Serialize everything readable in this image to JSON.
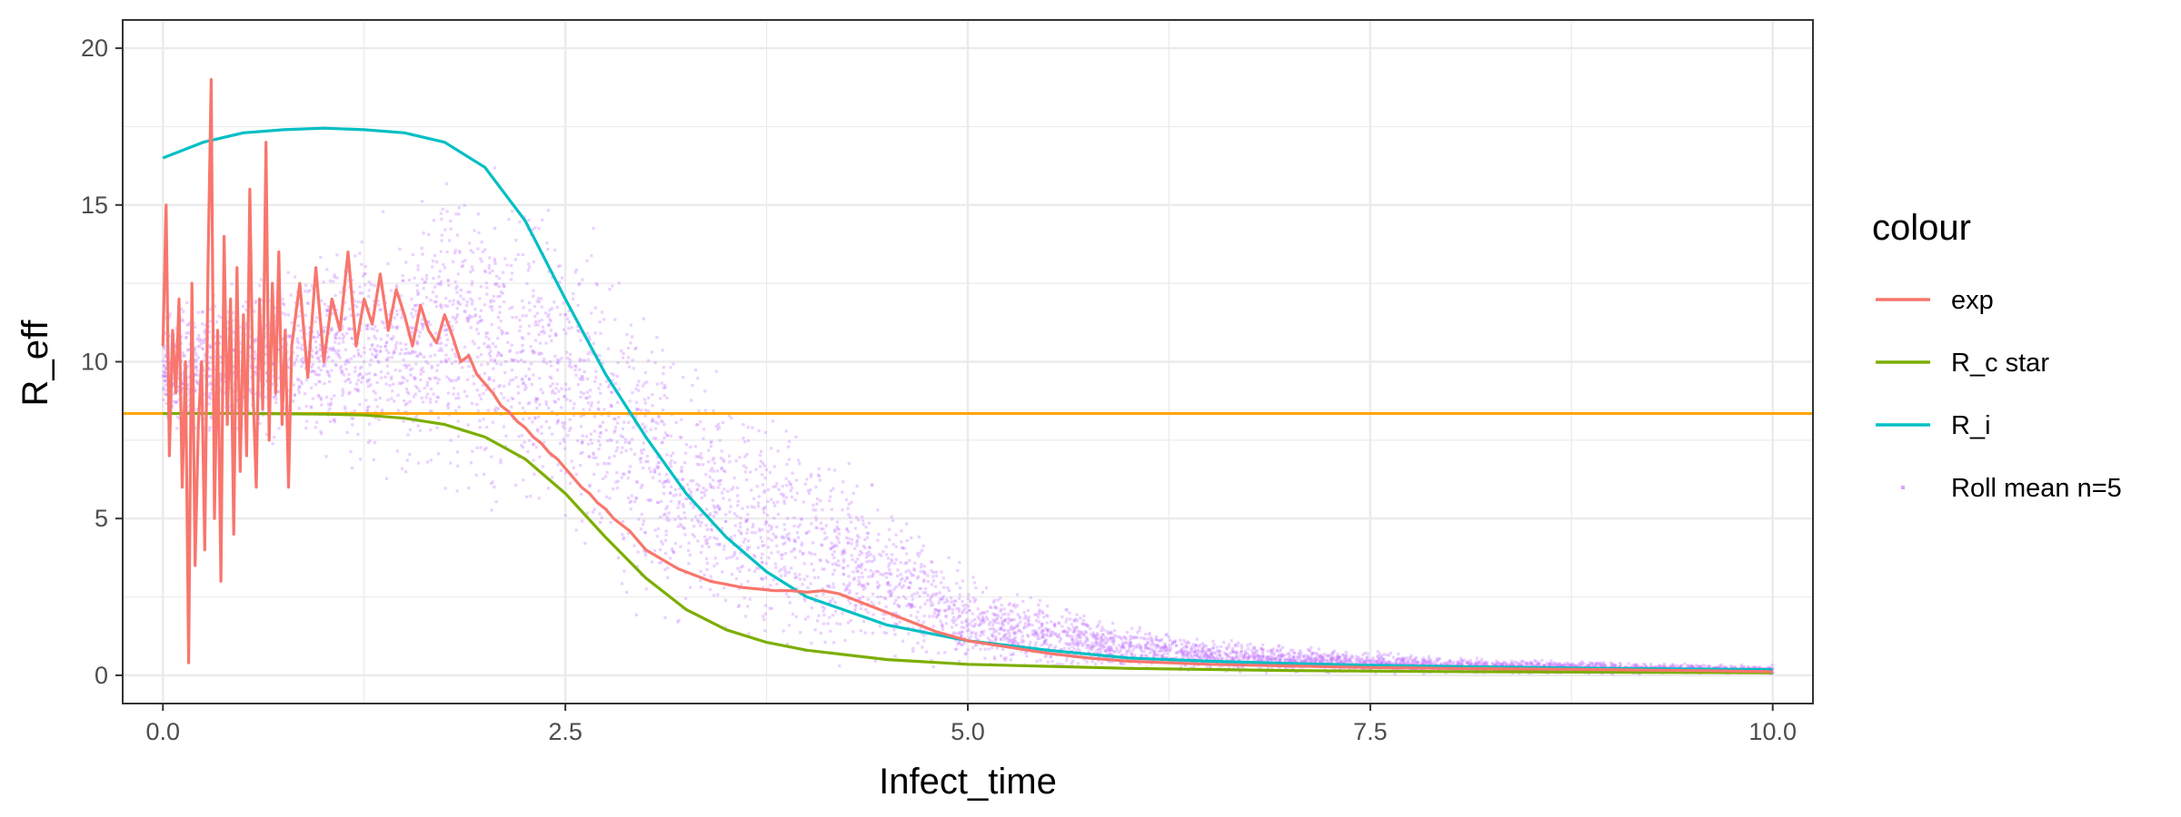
{
  "chart_data": {
    "type": "line",
    "xlabel": "Infect_time",
    "ylabel": "R_eff",
    "xlim": [
      -0.25,
      10.25
    ],
    "ylim": [
      -0.9,
      20.9
    ],
    "x_ticks": [
      0.0,
      2.5,
      5.0,
      7.5,
      10.0
    ],
    "x_tick_labels": [
      "0.0",
      "2.5",
      "5.0",
      "7.5",
      "10.0"
    ],
    "y_ticks": [
      0,
      5,
      10,
      15,
      20
    ],
    "y_tick_labels": [
      "0",
      "5",
      "10",
      "15",
      "20"
    ],
    "grid": true,
    "legend": {
      "title": "colour",
      "position": "right",
      "entries": [
        {
          "label": "exp",
          "color": "#F8766D",
          "kind": "line"
        },
        {
          "label": "R_c star",
          "color": "#7CAE00",
          "kind": "line"
        },
        {
          "label": "R_i",
          "color": "#00BFC4",
          "kind": "line"
        },
        {
          "label": "Roll mean n=5",
          "color": "#C77CFF",
          "kind": "point"
        }
      ]
    },
    "hline": {
      "y": 8.35,
      "color": "#FFA500"
    },
    "series": [
      {
        "name": "R_i",
        "color": "#00BFC4",
        "x": [
          0.0,
          0.25,
          0.5,
          0.75,
          1.0,
          1.25,
          1.5,
          1.75,
          2.0,
          2.25,
          2.5,
          2.75,
          3.0,
          3.25,
          3.5,
          3.75,
          4.0,
          4.5,
          5.0,
          5.5,
          6.0,
          6.5,
          7.0,
          7.5,
          8.0,
          9.0,
          10.0
        ],
        "y": [
          16.5,
          17.0,
          17.3,
          17.4,
          17.45,
          17.4,
          17.3,
          17.0,
          16.2,
          14.5,
          12.0,
          9.6,
          7.6,
          5.8,
          4.4,
          3.3,
          2.5,
          1.6,
          1.1,
          0.8,
          0.55,
          0.45,
          0.38,
          0.32,
          0.28,
          0.22,
          0.18
        ]
      },
      {
        "name": "R_c star",
        "color": "#7CAE00",
        "x": [
          0.0,
          0.5,
          1.0,
          1.25,
          1.5,
          1.75,
          2.0,
          2.25,
          2.5,
          2.75,
          3.0,
          3.25,
          3.5,
          3.75,
          4.0,
          4.5,
          5.0,
          6.0,
          7.0,
          8.0,
          9.0,
          10.0
        ],
        "y": [
          8.35,
          8.35,
          8.33,
          8.3,
          8.2,
          8.0,
          7.6,
          6.9,
          5.8,
          4.4,
          3.1,
          2.1,
          1.45,
          1.05,
          0.8,
          0.5,
          0.35,
          0.22,
          0.15,
          0.12,
          0.1,
          0.08
        ]
      },
      {
        "name": "exp",
        "color": "#F8766D",
        "x": [
          0.0,
          0.02,
          0.04,
          0.06,
          0.08,
          0.1,
          0.12,
          0.14,
          0.16,
          0.18,
          0.2,
          0.22,
          0.24,
          0.26,
          0.28,
          0.3,
          0.32,
          0.34,
          0.36,
          0.38,
          0.4,
          0.42,
          0.44,
          0.46,
          0.48,
          0.5,
          0.52,
          0.54,
          0.56,
          0.58,
          0.6,
          0.62,
          0.64,
          0.66,
          0.68,
          0.7,
          0.72,
          0.74,
          0.76,
          0.78,
          0.8,
          0.85,
          0.9,
          0.95,
          1.0,
          1.05,
          1.1,
          1.15,
          1.2,
          1.25,
          1.3,
          1.35,
          1.4,
          1.45,
          1.5,
          1.55,
          1.6,
          1.65,
          1.7,
          1.75,
          1.8,
          1.85,
          1.9,
          1.95,
          2.0,
          2.05,
          2.1,
          2.15,
          2.2,
          2.25,
          2.3,
          2.35,
          2.4,
          2.45,
          2.5,
          2.55,
          2.6,
          2.65,
          2.7,
          2.75,
          2.8,
          2.85,
          2.9,
          2.95,
          3.0,
          3.1,
          3.2,
          3.3,
          3.4,
          3.5,
          3.6,
          3.7,
          3.8,
          3.9,
          4.0,
          4.1,
          4.2,
          4.3,
          4.4,
          4.5,
          4.6,
          4.7,
          4.8,
          4.9,
          5.0,
          5.25,
          5.5,
          5.75,
          6.0,
          6.5,
          7.0,
          7.5,
          8.0,
          8.5,
          9.0,
          9.5,
          10.0
        ],
        "y": [
          10.5,
          15.0,
          7.0,
          11.0,
          9.0,
          12.0,
          6.0,
          10.0,
          0.4,
          12.5,
          3.5,
          8.0,
          10.0,
          4.0,
          13.0,
          19.0,
          5.0,
          11.0,
          3.0,
          14.0,
          8.0,
          12.0,
          4.5,
          13.0,
          6.5,
          11.5,
          7.0,
          15.5,
          9.0,
          6.0,
          12.0,
          8.5,
          17.0,
          7.5,
          12.5,
          9.0,
          13.5,
          8.0,
          11.0,
          6.0,
          10.5,
          12.5,
          9.5,
          13.0,
          10.0,
          12.0,
          11.0,
          13.5,
          10.5,
          12.0,
          11.2,
          12.8,
          11.0,
          12.3,
          11.5,
          10.5,
          11.8,
          11.0,
          10.6,
          11.5,
          10.8,
          10.0,
          10.2,
          9.6,
          9.3,
          9.0,
          8.6,
          8.4,
          8.1,
          7.9,
          7.6,
          7.4,
          7.1,
          6.9,
          6.6,
          6.3,
          6.0,
          5.8,
          5.5,
          5.3,
          5.0,
          4.8,
          4.6,
          4.3,
          4.0,
          3.7,
          3.4,
          3.2,
          3.0,
          2.9,
          2.8,
          2.75,
          2.7,
          2.7,
          2.65,
          2.7,
          2.6,
          2.4,
          2.2,
          2.0,
          1.8,
          1.6,
          1.4,
          1.25,
          1.1,
          0.9,
          0.7,
          0.55,
          0.45,
          0.35,
          0.3,
          0.25,
          0.22,
          0.2,
          0.18,
          0.15,
          0.12
        ]
      }
    ],
    "scatter_cloud": {
      "name": "Roll mean n=5",
      "color": "#C77CFF",
      "x_range": [
        0.0,
        10.0
      ],
      "x": [
        0.0,
        0.5,
        1.0,
        1.5,
        1.75,
        2.0,
        2.25,
        2.5,
        2.75,
        3.0,
        3.25,
        3.5,
        3.75,
        4.0,
        4.25,
        4.5,
        4.75,
        5.0,
        5.5,
        6.0,
        6.5,
        7.0,
        7.5,
        8.0,
        9.0,
        10.0
      ],
      "y_low": [
        7.5,
        7.0,
        6.5,
        5.5,
        5.0,
        4.4,
        3.6,
        2.8,
        2.0,
        1.3,
        0.8,
        0.5,
        0.3,
        0.15,
        0.1,
        0.05,
        0.02,
        0.0,
        0.0,
        0.0,
        0.0,
        0.0,
        0.0,
        0.0,
        0.0,
        0.0
      ],
      "y_high": [
        12.0,
        13.0,
        14.0,
        15.5,
        17.0,
        17.0,
        16.5,
        16.0,
        14.5,
        12.5,
        11.0,
        10.0,
        9.0,
        8.0,
        7.5,
        6.0,
        5.0,
        3.5,
        2.5,
        1.8,
        1.3,
        1.0,
        0.8,
        0.6,
        0.45,
        0.35
      ]
    }
  }
}
